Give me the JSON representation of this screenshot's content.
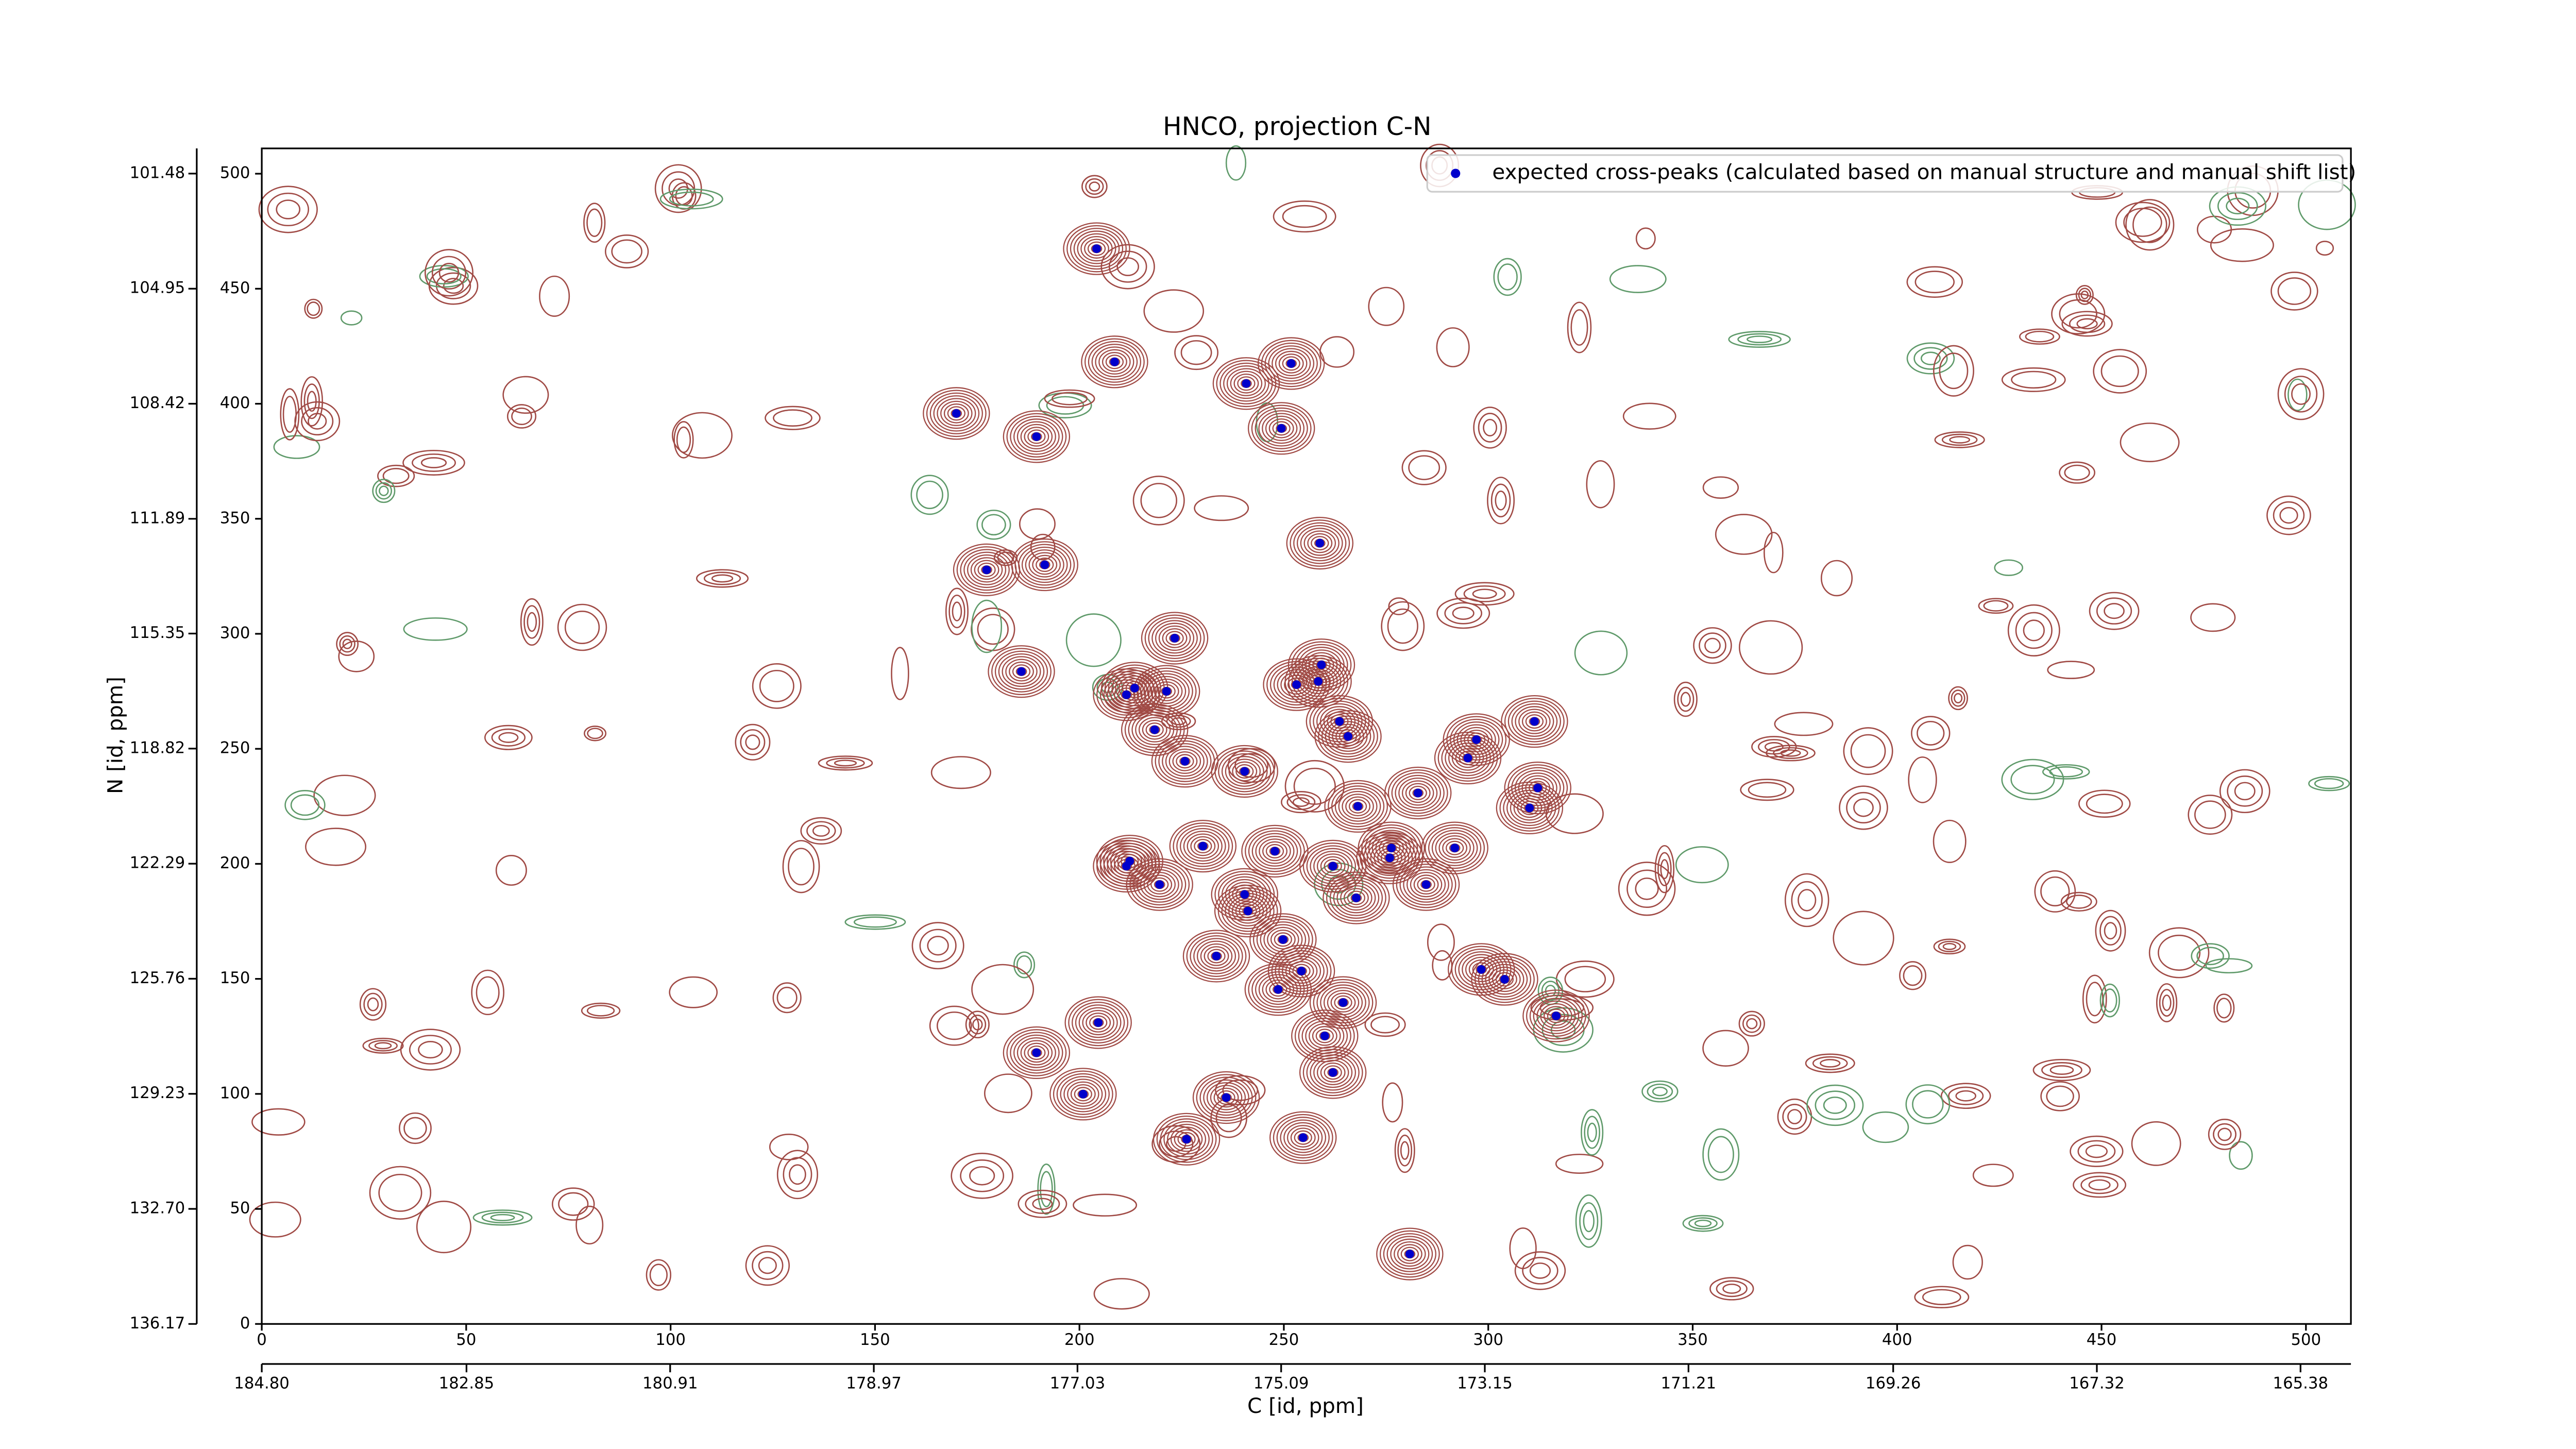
{
  "chart_data": {
    "type": "scatter",
    "title": "HNCO, projection C-N",
    "x_label": "C [id, ppm]",
    "y_label": "N [id, ppm]",
    "xlim": [
      0,
      511
    ],
    "ylim": [
      0,
      511
    ],
    "xticks": [
      0,
      50,
      100,
      150,
      200,
      250,
      300,
      350,
      400,
      450,
      500
    ],
    "yticks": [
      0,
      50,
      100,
      150,
      200,
      250,
      300,
      350,
      400,
      450,
      500
    ],
    "x2lim": [
      184.8,
      164.9
    ],
    "x2ticks": [
      {
        "value": 184.8,
        "label": "184.80"
      },
      182.85,
      180.91,
      178.97,
      177.03,
      175.09,
      173.15,
      171.21,
      169.26,
      167.32,
      165.38
    ],
    "y2lim": [
      136.17,
      100.72
    ],
    "y2ticks": [
      136.17,
      {
        "value": 132.7,
        "label": "132.70"
      },
      129.23,
      125.76,
      122.29,
      118.82,
      115.35,
      111.89,
      108.42,
      104.95,
      101.48
    ],
    "legend": "upper right",
    "series": [
      {
        "name": "expected cross-peaks (calculated based on manual structure and manual shift list)",
        "color": "#0000cc",
        "x": [
          204.2,
          208.6,
          240.8,
          251.8,
          169.9,
          189.5,
          249.4,
          258.8,
          177.3,
          191.5,
          223.3,
          185.8,
          213.5,
          211.5,
          221.3,
          253.1,
          259.2,
          258.4,
          218.4,
          263.6,
          265.7,
          225.8,
          240.4,
          297.1,
          295.0,
          311.3,
          312.1,
          310.1,
          282.8,
          268.1,
          276.3,
          275.9,
          291.8,
          262.0,
          247.8,
          230.2,
          212.3,
          211.5,
          219.6,
          240.4,
          241.2,
          267.7,
          284.8,
          233.5,
          249.8,
          254.3,
          248.6,
          264.5,
          260.0,
          204.6,
          189.5,
          200.9,
          235.9,
          262.0,
          298.3,
          304.0,
          316.6,
          226.2,
          254.7,
          280.8
        ],
        "y": [
          467.4,
          418.2,
          408.8,
          417.5,
          395.8,
          385.7,
          389.3,
          339.4,
          327.8,
          330.0,
          298.1,
          283.6,
          276.4,
          273.5,
          275.0,
          277.9,
          286.5,
          279.3,
          258.3,
          261.9,
          255.4,
          244.6,
          240.2,
          254.0,
          246.0,
          261.9,
          233.0,
          224.3,
          230.8,
          225.0,
          206.9,
          202.6,
          206.9,
          199.0,
          205.5,
          207.7,
          201.2,
          199.0,
          191.0,
          186.7,
          179.5,
          185.2,
          191.0,
          159.9,
          167.1,
          153.4,
          145.4,
          139.7,
          125.2,
          131.0,
          117.9,
          99.9,
          98.4,
          109.3,
          154.1,
          149.8,
          133.9,
          80.3,
          81.0,
          30.4
        ]
      }
    ]
  }
}
